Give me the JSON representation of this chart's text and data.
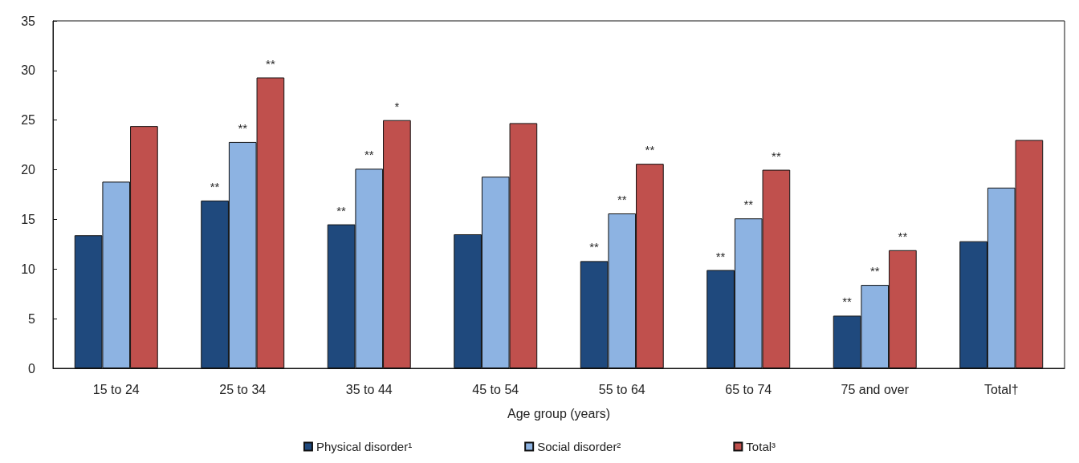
{
  "chart_data": {
    "type": "bar",
    "xlabel": "Age group (years)",
    "categories": [
      "15 to 24",
      "25 to 34",
      "35 to 44",
      "45 to 54",
      "55 to 64",
      "65 to 74",
      "75 and over",
      "Total†"
    ],
    "series": [
      {
        "name": "Physical disorder¹",
        "color": "#1f497d",
        "values": [
          13.4,
          16.9,
          14.5,
          13.5,
          10.8,
          9.9,
          5.3,
          12.8
        ],
        "value_labels": [
          null,
          "**",
          "**",
          null,
          "**",
          "**",
          "**",
          null
        ]
      },
      {
        "name": "Social disorder²",
        "color": "#8db3e2",
        "values": [
          18.8,
          22.8,
          20.1,
          19.3,
          15.6,
          15.1,
          8.4,
          18.2
        ],
        "value_labels": [
          null,
          "**",
          "**",
          null,
          "**",
          "**",
          "**",
          null
        ]
      },
      {
        "name": "Total³",
        "color": "#c0504d",
        "values": [
          24.4,
          29.3,
          25.0,
          24.7,
          20.6,
          20.0,
          11.9,
          23.0
        ],
        "value_labels": [
          null,
          "**",
          "*",
          null,
          "**",
          "**",
          "**",
          null
        ]
      }
    ],
    "ylim": [
      0,
      35
    ],
    "yticks": [
      0,
      5,
      10,
      15,
      20,
      25,
      30,
      35
    ],
    "grid": false,
    "legend": "bottom"
  }
}
